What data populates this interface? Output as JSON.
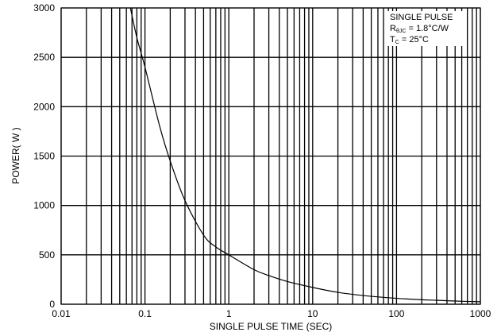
{
  "chart_data": {
    "type": "line",
    "title": "",
    "xlabel": "SINGLE PULSE TIME (SEC)",
    "ylabel": "POWER( W )",
    "xscale": "log",
    "xlim": [
      0.01,
      1000
    ],
    "ylim": [
      0,
      3000
    ],
    "grid": true,
    "xticks": [
      0.01,
      0.1,
      1,
      10,
      100,
      1000
    ],
    "xtick_labels": [
      "0.01",
      "0.1",
      "1",
      "10",
      "100",
      "1000"
    ],
    "yticks": [
      0,
      500,
      1000,
      1500,
      2000,
      2500,
      3000
    ],
    "ytick_labels": [
      "0",
      "500",
      "1000",
      "1500",
      "2000",
      "2500",
      "3000"
    ],
    "annotation": {
      "line1": "SINGLE PULSE",
      "line2_main": "R",
      "line2_sub": "θJC",
      "line2_rest": " = 1.8°C/W",
      "line3_main": "T",
      "line3_sub": "C",
      "line3_rest": " = 25°C"
    },
    "series": [
      {
        "color": "#000000",
        "x": [
          0.067,
          0.08,
          0.1,
          0.15,
          0.2,
          0.3,
          0.5,
          0.7,
          1,
          2,
          3,
          5,
          10,
          20,
          30,
          50,
          100,
          200,
          300,
          500,
          1000
        ],
        "y": [
          3000,
          2700,
          2400,
          1800,
          1450,
          1050,
          700,
          580,
          500,
          350,
          290,
          230,
          170,
          120,
          100,
          80,
          60,
          45,
          40,
          32,
          25
        ]
      }
    ]
  }
}
